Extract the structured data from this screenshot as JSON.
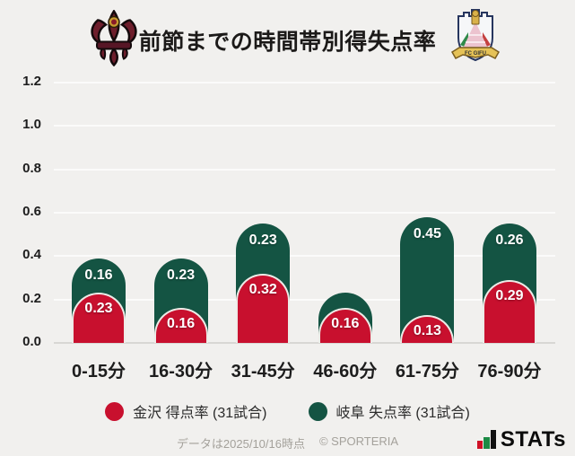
{
  "header": {
    "left_logo": "zweigen-kanazawa-crest",
    "right_logo": "fc-gifu-crest",
    "right_logo_text": "FC GIFU"
  },
  "chart_data": {
    "type": "bar",
    "stacked": true,
    "title": "前節までの時間帯別得失点率",
    "categories": [
      "0-15分",
      "16-30分",
      "31-45分",
      "46-60分",
      "61-75分",
      "76-90分"
    ],
    "series": [
      {
        "name": "金沢 得点率 (31試合)",
        "color": "#c8102e",
        "values": [
          0.23,
          0.16,
          0.32,
          0.16,
          0.13,
          0.29
        ],
        "value_labels": [
          "0.23",
          "0.16",
          "0.32",
          "0.16",
          "0.13",
          "0.29"
        ]
      },
      {
        "name": "岐阜 失点率 (31試合)",
        "color": "#145443",
        "values": [
          0.16,
          0.23,
          0.23,
          0.07,
          0.45,
          0.26
        ],
        "value_labels": [
          "0.16",
          "0.23",
          "0.23",
          "",
          "0.45",
          "0.26"
        ]
      }
    ],
    "y_ticks": [
      "0.0",
      "0.2",
      "0.4",
      "0.6",
      "0.8",
      "1.0",
      "1.2"
    ],
    "ylim": [
      0,
      1.2
    ],
    "grid": true,
    "legend_position": "bottom"
  },
  "legend": {
    "items": [
      {
        "label": "金沢 得点率 (31試合)",
        "color": "#c8102e"
      },
      {
        "label": "岐阜 失点率 (31試合)",
        "color": "#145443"
      }
    ]
  },
  "footer": {
    "note": "データは2025/10/16時点",
    "copyright": "© SPORTERIA",
    "brand": "STATs"
  },
  "colors": {
    "background": "#f1f0ee",
    "kanazawa_red": "#c8102e",
    "gifu_green": "#145443",
    "gridline": "#fbfbfa",
    "baseline": "#d8d7d4"
  }
}
